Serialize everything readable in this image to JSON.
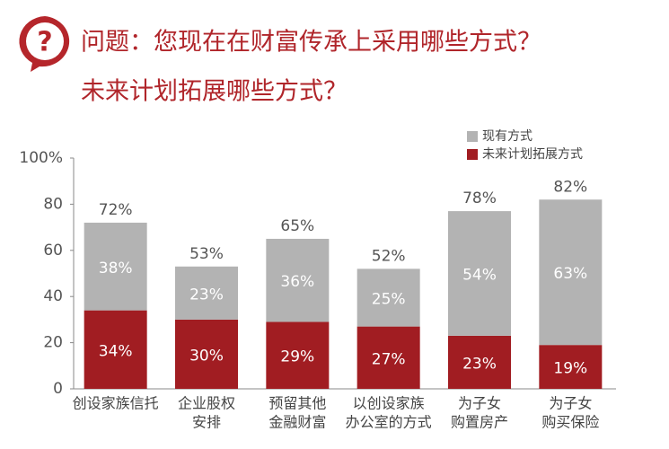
{
  "chart_data": {
    "type": "stacked_bar",
    "icon_text": "?",
    "title": [
      "问题：您现在在财富传承上采用哪些方式？",
      "未来计划拓展哪些方式？"
    ],
    "categories": [
      [
        "创设家族信托"
      ],
      [
        "企业股权",
        "安排"
      ],
      [
        "预留其他",
        "金融财富"
      ],
      [
        "以创设家族",
        "办公室的方式"
      ],
      [
        "为子女",
        "购置房产"
      ],
      [
        "为子女",
        "购买保险"
      ]
    ],
    "series": [
      {
        "name": "现有方式",
        "color": "#b3b3b3",
        "values": [
          38,
          23,
          36,
          25,
          54,
          63
        ],
        "value_labels": [
          "38%",
          "23%",
          "36%",
          "25%",
          "54%",
          "63%"
        ]
      },
      {
        "name": "未来计划拓展方式",
        "color": "#a11d22",
        "values": [
          34,
          30,
          29,
          27,
          23,
          19
        ],
        "value_labels": [
          "34%",
          "30%",
          "29%",
          "27%",
          "23%",
          "19%"
        ]
      }
    ],
    "totals": {
      "values": [
        72,
        53,
        65,
        52,
        78,
        82
      ],
      "value_labels": [
        "72%",
        "53%",
        "65%",
        "52%",
        "78%",
        "82%"
      ]
    },
    "ylim": [
      0,
      100
    ],
    "yticks": [
      0,
      20,
      40,
      60,
      80,
      {
        "value": 100,
        "label": "100%"
      }
    ]
  }
}
